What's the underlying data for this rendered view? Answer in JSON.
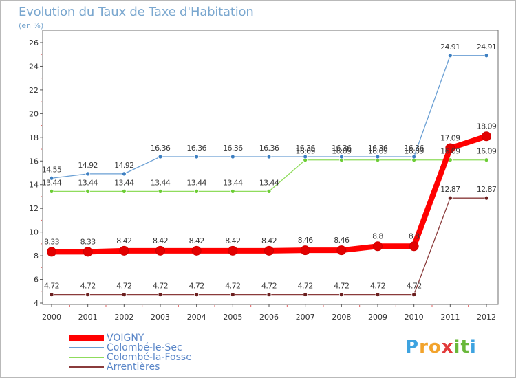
{
  "title": "Evolution du Taux de Taxe d'Habitation",
  "unit": "(en %)",
  "logo": {
    "letters": [
      "P",
      "r",
      "o",
      "x",
      "i",
      "t",
      "i"
    ],
    "colors": [
      "#3ea3e0",
      "#f2a32c",
      "#f2a32c",
      "#e23a3a",
      "#69b83a",
      "#69b83a",
      "#3ea3e0"
    ]
  },
  "chart_data": {
    "type": "line",
    "title": "Evolution du Taux de Taxe d'Habitation",
    "ylabel": "(en %)",
    "xlabel": "",
    "categories": [
      "2000",
      "2001",
      "2002",
      "2003",
      "2004",
      "2005",
      "2006",
      "2007",
      "2008",
      "2009",
      "2010",
      "2011",
      "2012"
    ],
    "ylim": [
      4,
      26
    ],
    "yticks": [
      4,
      6,
      8,
      10,
      12,
      14,
      16,
      18,
      20,
      22,
      24,
      26
    ],
    "grid": false,
    "legend_position": "bottom-left",
    "series": [
      {
        "name": "VOIGNY",
        "color": "#ff0000",
        "marker_color": "#e30000",
        "values": [
          8.33,
          8.33,
          8.42,
          8.42,
          8.42,
          8.42,
          8.42,
          8.46,
          8.46,
          8.8,
          8.8,
          17.09,
          18.09
        ],
        "labels": [
          "8.33",
          "8.33",
          "8.42",
          "8.42",
          "8.42",
          "8.42",
          "8.42",
          "8.46",
          "8.46",
          "8.8",
          "8.8",
          "17.09",
          "18.09"
        ]
      },
      {
        "name": "Colombé-le-Sec",
        "color": "#6a9fd4",
        "marker_color": "#3d7fc1",
        "values": [
          14.55,
          14.92,
          14.92,
          16.36,
          16.36,
          16.36,
          16.36,
          16.36,
          16.36,
          16.36,
          16.36,
          24.91,
          24.91
        ],
        "labels": [
          "14.55",
          "14.92",
          "14.92",
          "16.36",
          "16.36",
          "16.36",
          "16.36",
          "16.36",
          "16.36",
          "16.36",
          "16.36",
          "24.91",
          "24.91"
        ]
      },
      {
        "name": "Colombé-la-Fosse",
        "color": "#8fdc5c",
        "marker_color": "#6ccd35",
        "values": [
          13.44,
          13.44,
          13.44,
          13.44,
          13.44,
          13.44,
          13.44,
          16.09,
          16.09,
          16.09,
          16.09,
          16.09,
          16.09
        ],
        "labels": [
          "13.44",
          "13.44",
          "13.44",
          "13.44",
          "13.44",
          "13.44",
          "13.44",
          "16.09",
          "16.09",
          "16.09",
          "16.09",
          "16.09",
          "16.09"
        ]
      },
      {
        "name": "Arrentières",
        "color": "#8a3b3b",
        "marker_color": "#6b1f1f",
        "values": [
          4.72,
          4.72,
          4.72,
          4.72,
          4.72,
          4.72,
          4.72,
          4.72,
          4.72,
          4.72,
          4.72,
          12.87,
          12.87
        ],
        "labels": [
          "4.72",
          "4.72",
          "4.72",
          "4.72",
          "4.72",
          "4.72",
          "4.72",
          "4.72",
          "4.72",
          "4.72",
          "4.72",
          "12.87",
          "12.87"
        ]
      }
    ]
  }
}
